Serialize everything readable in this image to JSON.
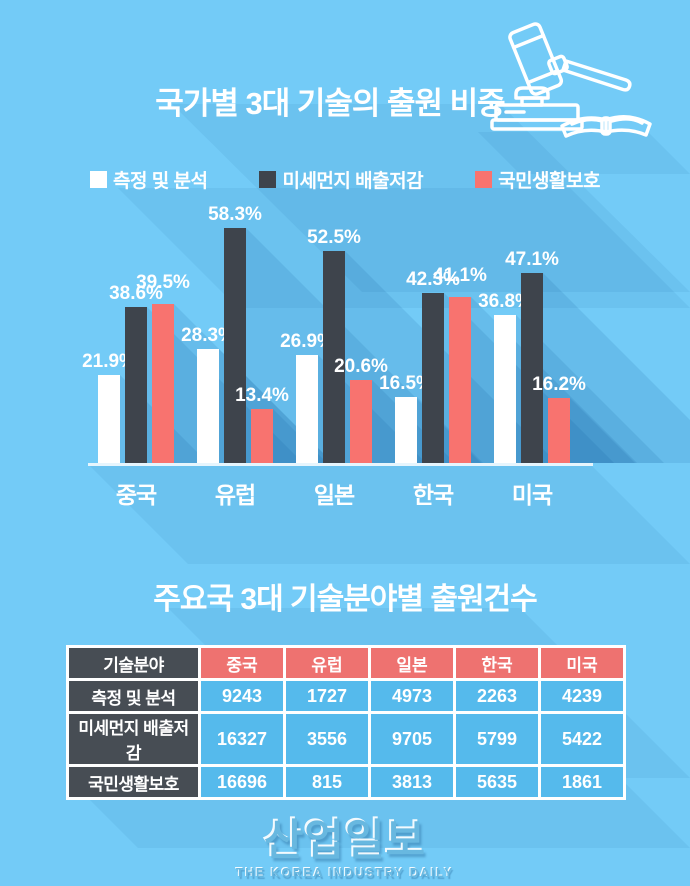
{
  "header": {
    "title": "국가별 3대 기술의 출원 비중",
    "icon": "gavel-and-book"
  },
  "chart": {
    "legend": [
      {
        "label": "측정 및 분석",
        "color": "#ffffff"
      },
      {
        "label": "미세먼지 배출저감",
        "color": "#3e444c"
      },
      {
        "label": "국민생활보호",
        "color": "#f8736f"
      }
    ]
  },
  "chart_data": {
    "type": "bar",
    "title": "국가별 3대 기술의 출원 비중",
    "categories": [
      "중국",
      "유럽",
      "일본",
      "한국",
      "미국"
    ],
    "series": [
      {
        "name": "측정 및 분석",
        "color": "#ffffff",
        "values": [
          21.9,
          28.3,
          26.9,
          16.5,
          36.8
        ]
      },
      {
        "name": "미세먼지 배출저감",
        "color": "#3e444c",
        "values": [
          38.6,
          58.3,
          52.5,
          42.3,
          47.1
        ]
      },
      {
        "name": "국민생활보호",
        "color": "#f8736f",
        "values": [
          39.5,
          13.4,
          20.6,
          41.1,
          16.2
        ]
      }
    ],
    "unit": "%",
    "ylim": [
      0,
      60
    ],
    "value_labels": true,
    "grid": false,
    "legend_position": "top"
  },
  "table_section": {
    "title": "주요국 3대 기술분야별 출원건수",
    "table": {
      "corner_header": "기술분야",
      "column_headers": [
        "중국",
        "유럽",
        "일본",
        "한국",
        "미국"
      ],
      "rows": [
        {
          "label": "측정 및 분석",
          "values": [
            9243,
            1727,
            4973,
            2263,
            4239
          ]
        },
        {
          "label": "미세먼지 배출저감",
          "values": [
            16327,
            3556,
            9705,
            5799,
            5422
          ]
        },
        {
          "label": "국민생활보호",
          "values": [
            16696,
            815,
            3813,
            5635,
            1861
          ]
        }
      ]
    }
  },
  "footer": {
    "logo_text": "산업일보",
    "logo_subtext": "THE KOREA INDUSTRY DAILY"
  },
  "colors": {
    "background": "#73cbf7",
    "long_shadow": "#59bdee",
    "dark_series": "#3e444c",
    "red_series": "#f8736f",
    "table_header_red": "#ee7270",
    "table_label_dark": "#474d54",
    "table_cell_blue": "#55baec",
    "text": "#ffffff"
  }
}
